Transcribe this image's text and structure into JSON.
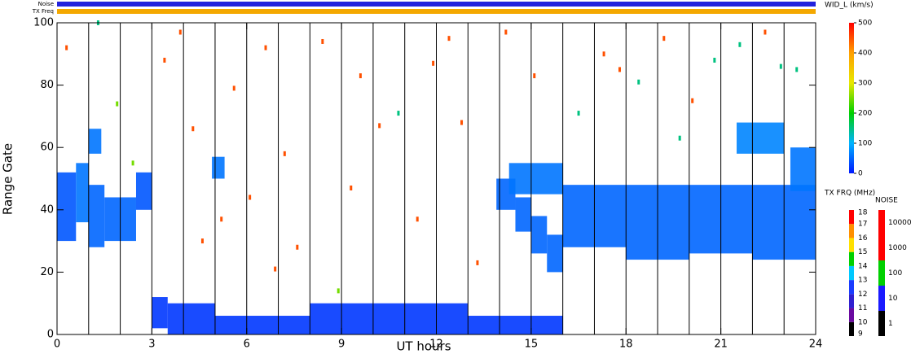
{
  "chart_data": {
    "type": "range_time",
    "x_label": "UT hours",
    "y_label": "Range Gate",
    "xlim": [
      0,
      24
    ],
    "xticks": [
      0,
      3,
      6,
      9,
      12,
      15,
      18,
      21,
      24
    ],
    "ylim": [
      0,
      100
    ],
    "yticks": [
      0,
      20,
      40,
      60,
      80,
      100
    ],
    "hour_lines": [
      1,
      2,
      3,
      4,
      5,
      6,
      7,
      8,
      9,
      10,
      11,
      12,
      13,
      14,
      15,
      16,
      17,
      18,
      19,
      20,
      21,
      22,
      23
    ],
    "patches": {
      "x0": [
        0.0,
        0.6,
        1.0,
        1.5,
        2.5,
        1.0,
        3.0,
        3.5,
        5.0,
        8.0,
        13.0,
        4.9,
        13.9,
        14.5,
        15.0,
        15.5,
        14.3,
        16.0,
        18.0,
        20.0,
        22.0,
        21.5,
        23.2
      ],
      "x1": [
        0.6,
        1.0,
        1.5,
        2.5,
        3.0,
        1.4,
        3.5,
        5.0,
        8.0,
        13.0,
        16.0,
        5.3,
        14.5,
        15.0,
        15.5,
        16.0,
        16.0,
        18.0,
        20.0,
        22.0,
        24.0,
        23.0,
        24.0
      ],
      "g0": [
        30,
        36,
        28,
        30,
        40,
        58,
        2,
        0,
        0,
        0,
        0,
        50,
        40,
        33,
        26,
        20,
        45,
        28,
        24,
        26,
        24,
        58,
        46
      ],
      "g1": [
        52,
        55,
        48,
        44,
        52,
        66,
        12,
        10,
        6,
        10,
        6,
        57,
        50,
        44,
        38,
        32,
        55,
        48,
        48,
        48,
        48,
        68,
        60
      ],
      "values": [
        40,
        60,
        50,
        50,
        40,
        60,
        20,
        20,
        20,
        20,
        20,
        60,
        50,
        50,
        50,
        50,
        60,
        50,
        50,
        50,
        50,
        70,
        60
      ]
    },
    "points": {
      "x": [
        0.3,
        1.3,
        1.9,
        3.4,
        3.9,
        4.3,
        4.6,
        5.6,
        6.1,
        6.6,
        7.2,
        7.6,
        8.4,
        9.3,
        9.6,
        10.2,
        10.8,
        11.4,
        11.9,
        12.4,
        13.3,
        14.2,
        15.1,
        16.5,
        17.3,
        18.4,
        19.2,
        20.1,
        20.8,
        21.6,
        22.4,
        23.4,
        2.4,
        6.9,
        8.9,
        12.8,
        17.8,
        19.7,
        22.9,
        5.2
      ],
      "y": [
        92,
        100,
        74,
        88,
        97,
        66,
        30,
        79,
        44,
        92,
        58,
        28,
        94,
        47,
        83,
        67,
        71,
        37,
        87,
        95,
        23,
        97,
        83,
        71,
        90,
        81,
        95,
        75,
        88,
        93,
        97,
        85,
        55,
        21,
        14,
        68,
        85,
        63,
        86,
        37
      ],
      "values": [
        450,
        150,
        250,
        450,
        450,
        450,
        450,
        450,
        450,
        450,
        450,
        450,
        450,
        450,
        450,
        450,
        150,
        450,
        450,
        450,
        450,
        450,
        450,
        150,
        450,
        150,
        450,
        450,
        150,
        150,
        450,
        150,
        250,
        450,
        250,
        450,
        450,
        150,
        150,
        450
      ]
    },
    "strips": [
      {
        "name": "Noise",
        "color": "#2222dd"
      },
      {
        "name": "TX Freq",
        "color": "#f4a800"
      }
    ],
    "width_bar": {
      "label": "WID_L (km/s)",
      "lim": [
        0,
        500
      ],
      "ticks": [
        0,
        100,
        200,
        300,
        400,
        500
      ],
      "colors": [
        "#0018ff",
        "#00b4ff",
        "#00d000",
        "#e8e800",
        "#ffa000",
        "#ff0000"
      ]
    },
    "freq_bar": {
      "label": "TX FRQ (MHz)",
      "ticks": [
        9,
        10,
        11,
        12,
        13,
        14,
        15,
        16,
        17,
        18
      ],
      "colors": [
        "#000000",
        "#6a0aa0",
        "#3020d0",
        "#1a3cff",
        "#00c8ff",
        "#00d000",
        "#ffe000",
        "#ff9000",
        "#ff0000"
      ]
    },
    "noise_bar": {
      "label": "NOISE",
      "ticks": [
        1,
        10,
        100,
        1000,
        10000
      ],
      "colors": [
        "#000000",
        "#1a1aff",
        "#00d000",
        "#ff0000",
        "#ff0000"
      ]
    }
  }
}
